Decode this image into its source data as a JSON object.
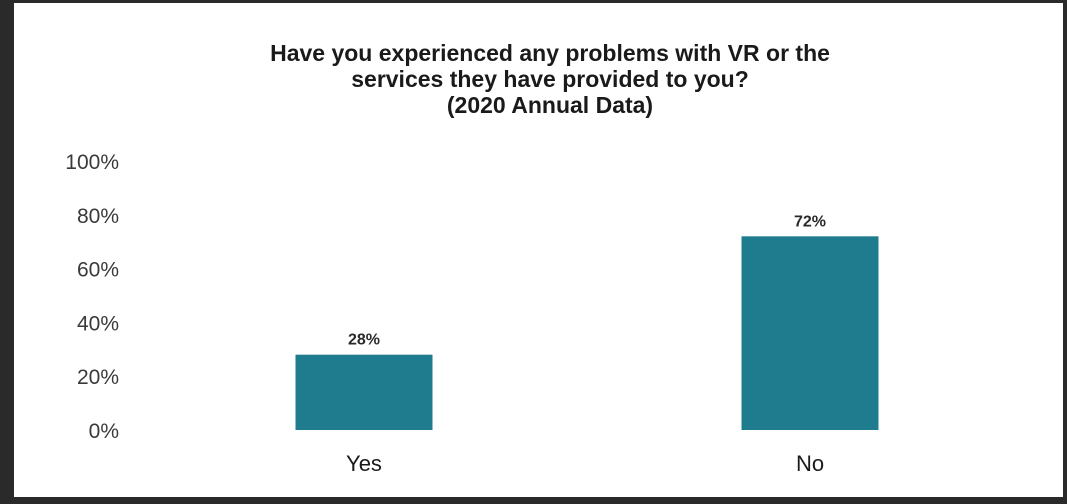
{
  "chart_data": {
    "type": "bar",
    "title": "Have you experienced any problems with VR or the\nservices they have provided to you?\n(2020 Annual Data)",
    "categories": [
      "Yes",
      "No"
    ],
    "values": [
      28,
      72
    ],
    "data_labels": [
      "28%",
      "72%"
    ],
    "ylim": [
      0,
      100
    ],
    "yticks": [
      "0%",
      "20%",
      "40%",
      "60%",
      "80%",
      "100%"
    ],
    "ytick_values": [
      0,
      20,
      40,
      60,
      80,
      100
    ],
    "xlabel": "",
    "ylabel": "",
    "grid": false,
    "legend": "none",
    "bar_color": "#1f7c8f"
  }
}
